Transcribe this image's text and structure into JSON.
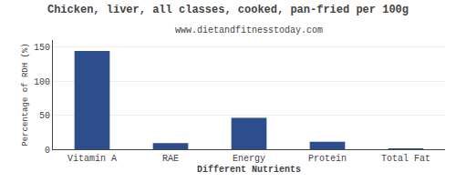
{
  "chart_data": {
    "type": "bar",
    "title": "Chicken, liver, all classes, cooked, pan-fried per 100g",
    "subtitle": "www.dietandfitnesstoday.com",
    "categories": [
      "Vitamin A",
      "RAE",
      "Energy",
      "Protein",
      "Total Fat"
    ],
    "values": [
      144,
      9,
      46,
      11,
      1
    ],
    "color": "#2e4d8c",
    "xlabel": "Different Nutrients",
    "ylabel": "Percentage of RDH (%)",
    "ylim": [
      0,
      160
    ],
    "yticks": [
      0,
      50,
      100,
      150
    ],
    "grid": true
  }
}
